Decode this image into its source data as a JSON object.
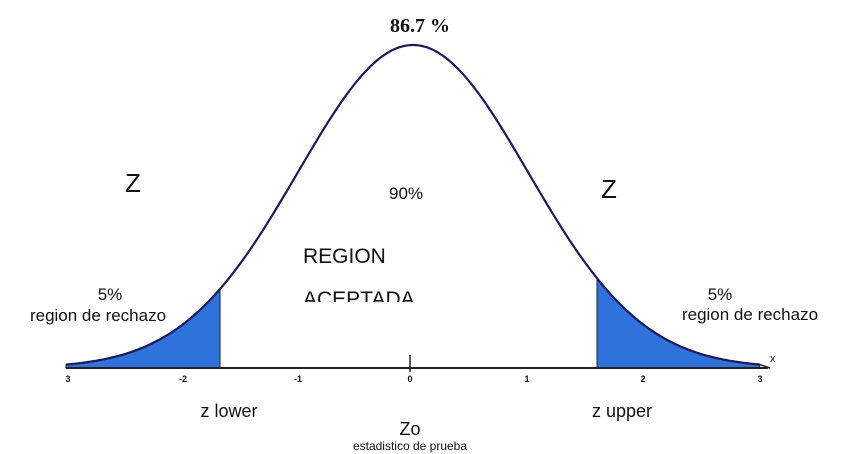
{
  "peak_label": "86.7 %",
  "center_label": "90%",
  "acceptance_region": [
    "REGION",
    "ACEPTADA"
  ],
  "left_marker": "Z",
  "right_marker": "Z",
  "left_tail": {
    "percent": "5%",
    "label": "region de rechazo"
  },
  "right_tail": {
    "percent": "5%",
    "label": "region de rechazo"
  },
  "axis": {
    "ticks": [
      "3",
      "-2",
      "-1",
      "0",
      "1",
      "2",
      "3"
    ],
    "label": "x"
  },
  "z_lower": "z  lower",
  "z_upper": "z upper",
  "z0": "Zo",
  "z0_caption": "estadistico de prueba"
}
